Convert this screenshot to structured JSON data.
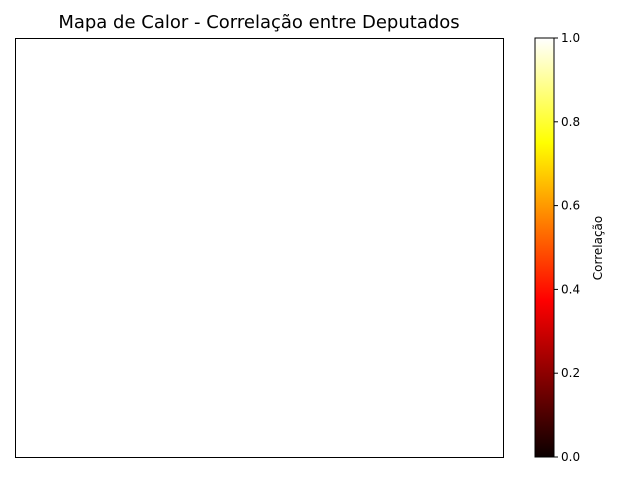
{
  "chart_data": {
    "type": "heatmap",
    "title": "Mapa de Calor - Correlação entre Deputados",
    "xlabel": "",
    "ylabel": "",
    "x_categories": [],
    "y_categories": [],
    "matrix": [],
    "colormap": "hot",
    "colorbar": {
      "label": "Correlação",
      "range": [
        0.0,
        1.0
      ],
      "ticks": [
        0.0,
        0.2,
        0.4,
        0.6,
        0.8,
        1.0
      ],
      "tick_labels": [
        "0.0",
        "0.2",
        "0.4",
        "0.6",
        "0.8",
        "1.0"
      ],
      "colors": [
        "#0b0000",
        "#ff0000",
        "#ffff00",
        "#ffffff"
      ]
    },
    "grid": false
  }
}
